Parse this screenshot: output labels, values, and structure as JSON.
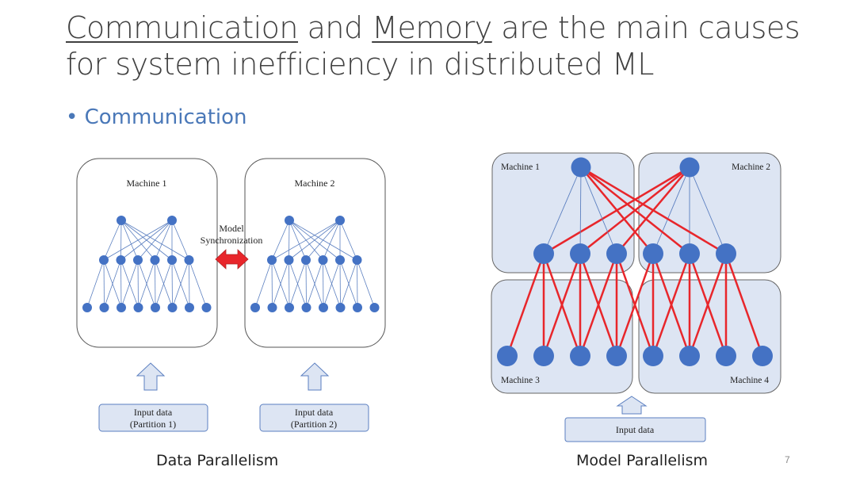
{
  "title": {
    "underlined_1": "Communication",
    "text_1": " and ",
    "underlined_2": "Memory",
    "text_2": " are the main causes",
    "line_2": "for system inefficiency in distributed ML"
  },
  "bullet": "• Communication",
  "data_parallelism": {
    "machine_1": "Machine 1",
    "machine_2": "Machine 2",
    "sync_line_1": "Model",
    "sync_line_2": "Synchronization",
    "input_1_line_1": "Input data",
    "input_1_line_2": "(Partition 1)",
    "input_2_line_1": "Input data",
    "input_2_line_2": "(Partition 2)",
    "caption": "Data Parallelism"
  },
  "model_parallelism": {
    "machine_1": "Machine 1",
    "machine_2": "Machine 2",
    "machine_3": "Machine 3",
    "machine_4": "Machine 4",
    "input": "Input data",
    "caption": "Model Parallelism"
  },
  "page_number": "7",
  "colors": {
    "node": "#4472c4",
    "edge": "#5b7fc0",
    "cross_edge": "#e8262b",
    "box_fill": "#dde5f3",
    "sync_arrow": "#e8262b"
  }
}
